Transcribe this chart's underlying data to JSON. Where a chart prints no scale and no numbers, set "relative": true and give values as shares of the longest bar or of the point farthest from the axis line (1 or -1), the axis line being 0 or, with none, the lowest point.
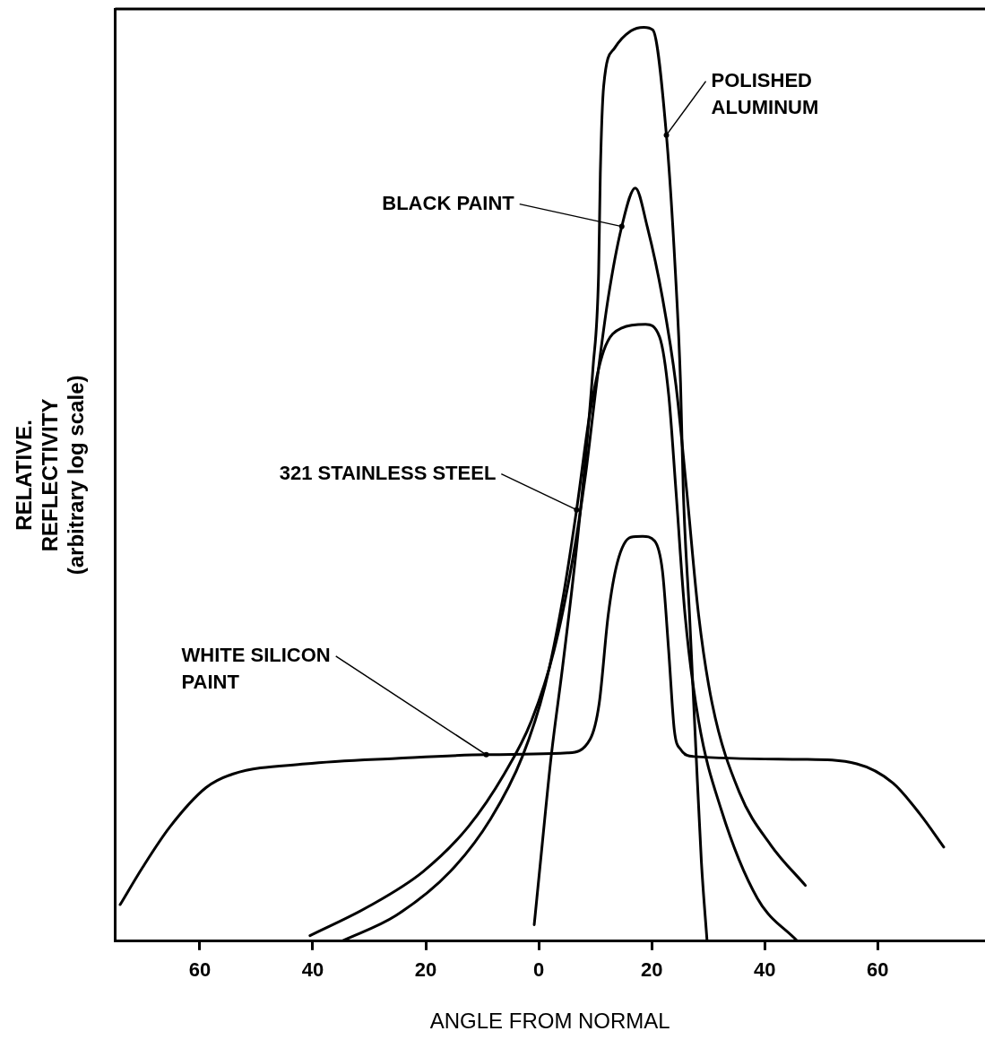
{
  "chart_data": {
    "type": "line",
    "xlabel": "ANGLE FROM NORMAL",
    "ylabel": "RELATIVE.\nREFLECTIVITY\n(arbitrary log scale)",
    "relative": true,
    "legend": false,
    "marker": "none",
    "line_style": "solid",
    "xlim": [
      -75,
      79
    ],
    "xticks": [
      {
        "value": -60,
        "label": "60"
      },
      {
        "value": -40,
        "label": "40"
      },
      {
        "value": -20,
        "label": "20"
      },
      0,
      20,
      40,
      60
    ],
    "series": [
      {
        "name": "POLISHED\nALUMINUM",
        "color": "#000000",
        "x": [
          -0.8,
          0.6,
          2.2,
          4.2,
          6.4,
          8.3,
          9.6,
          10.6,
          10.9,
          11.5,
          13.4,
          16.3,
          18.6,
          20.2,
          22.6,
          24.2,
          25.1,
          25.6,
          26.7,
          27.8,
          28.8,
          29.8
        ],
        "values": [
          0.018,
          0.105,
          0.202,
          0.299,
          0.414,
          0.53,
          0.627,
          0.731,
          0.84,
          0.936,
          0.977,
          0.996,
          1.0,
          0.997,
          0.882,
          0.731,
          0.611,
          0.49,
          0.356,
          0.212,
          0.086,
          0
        ]
      },
      {
        "name": "BLACK PAINT",
        "color": "#000000",
        "x": [
          -40.5,
          -30.1,
          -20.5,
          -12.5,
          -6.1,
          -1.3,
          2.7,
          5.9,
          8.3,
          10.2,
          12.3,
          14.7,
          17.1,
          19.2,
          21.9,
          24.3,
          26.2,
          28.3,
          30.7,
          35.5,
          41.1,
          47.2
        ],
        "values": [
          0.006,
          0.038,
          0.076,
          0.125,
          0.183,
          0.241,
          0.318,
          0.414,
          0.511,
          0.608,
          0.704,
          0.782,
          0.824,
          0.782,
          0.704,
          0.608,
          0.492,
          0.357,
          0.26,
          0.163,
          0.105,
          0.061
        ]
      },
      {
        "name": "321 STAINLESS STEEL",
        "color": "#000000",
        "x": [
          -34.9,
          -25.3,
          -15.7,
          -8.5,
          -2.9,
          1.1,
          4.3,
          6.7,
          9.1,
          11.5,
          14.7,
          18.9,
          21.4,
          23.0,
          24.3,
          25.9,
          28.3,
          32.3,
          38.7,
          45.8
        ],
        "values": [
          0,
          0.028,
          0.076,
          0.134,
          0.202,
          0.279,
          0.376,
          0.472,
          0.579,
          0.646,
          0.671,
          0.675,
          0.661,
          0.598,
          0.492,
          0.357,
          0.241,
          0.144,
          0.047,
          0
        ]
      },
      {
        "name": "WHITE SILICON\nPAINT",
        "color": "#000000",
        "x": [
          -74.1,
          -70.1,
          -65.3,
          -58.9,
          -54.1,
          -41.3,
          -25.3,
          -9.3,
          5.1,
          9.1,
          10.7,
          12.3,
          13.9,
          16.3,
          18.4,
          20.5,
          21.9,
          23.0,
          24.0,
          25.1,
          27.5,
          46.7,
          56.3,
          62.7,
          67.5,
          71.7
        ],
        "values": [
          0.04,
          0.081,
          0.125,
          0.168,
          0.183,
          0.194,
          0.2,
          0.204,
          0.206,
          0.221,
          0.26,
          0.357,
          0.414,
          0.442,
          0.443,
          0.438,
          0.405,
          0.318,
          0.231,
          0.21,
          0.202,
          0.199,
          0.194,
          0.173,
          0.139,
          0.103
        ]
      }
    ]
  }
}
